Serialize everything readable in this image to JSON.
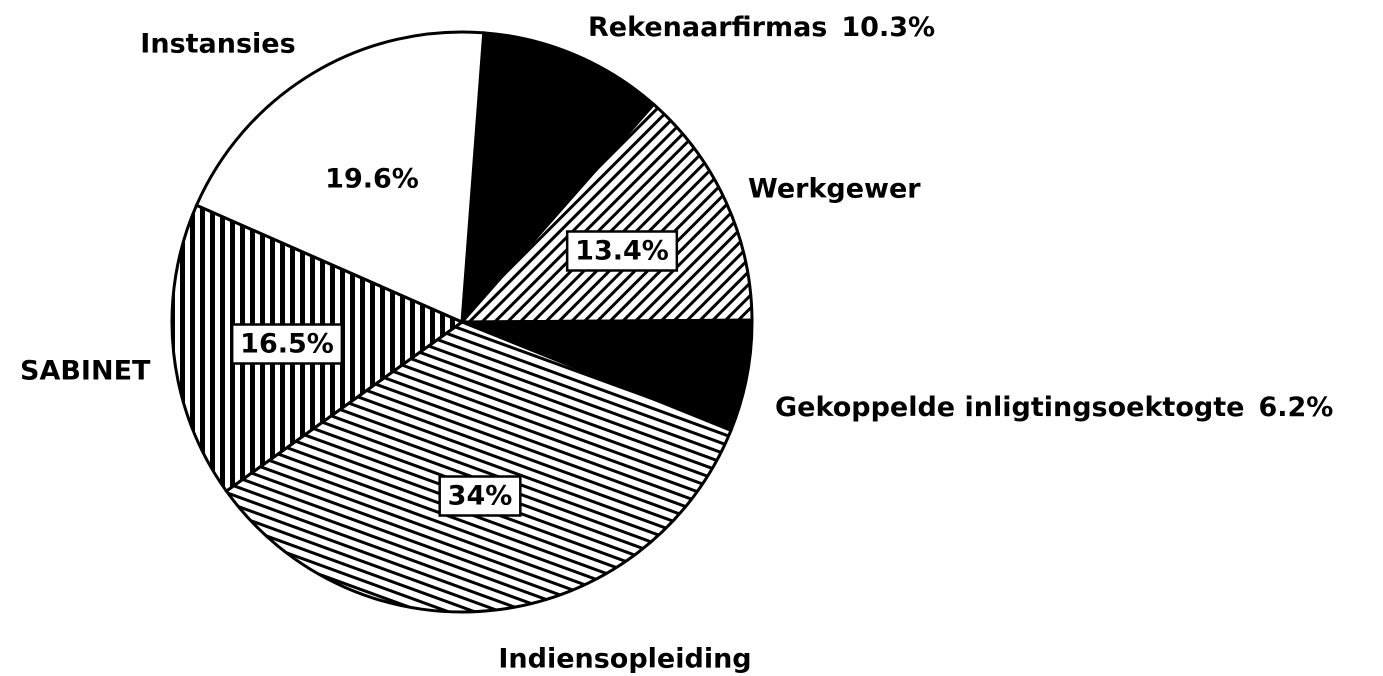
{
  "chart_data": {
    "type": "pie",
    "categories": [
      "Rekenaarfirmas",
      "Werkgewer",
      "Gekoppelde inligtingsoektogte",
      "Indiensopleiding",
      "SABINET",
      "Instansies"
    ],
    "values": [
      10.3,
      13.4,
      6.2,
      34,
      16.5,
      19.6
    ],
    "value_labels": [
      "10.3%",
      "13.4%",
      "6.2%",
      "34%",
      "16.5%",
      "19.6%"
    ],
    "patterns": [
      "solid",
      "diagonal",
      "solid",
      "diagonal-shallow",
      "vertical",
      "none"
    ]
  }
}
